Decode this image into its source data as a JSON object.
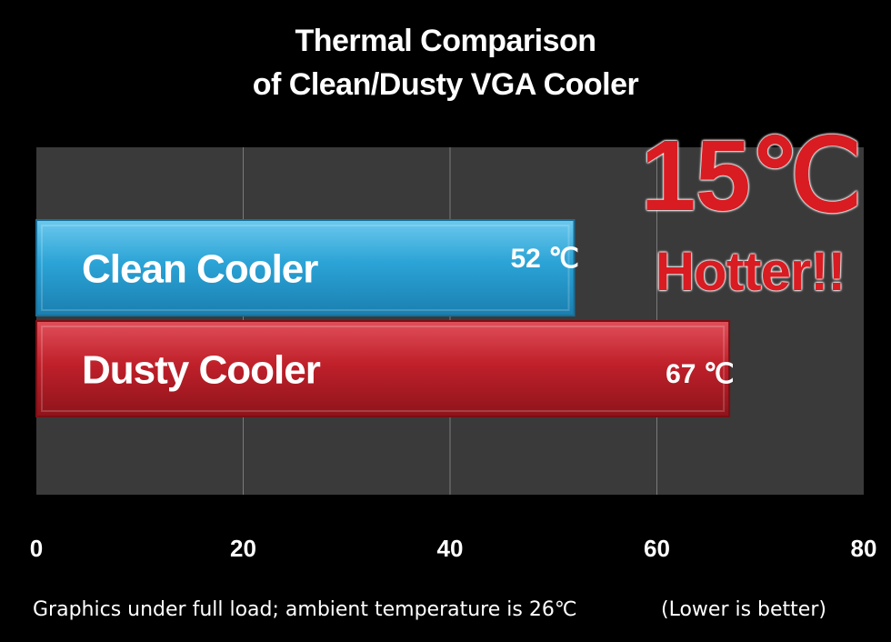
{
  "chart_data": {
    "type": "bar",
    "orientation": "horizontal",
    "title_lines": [
      "Thermal Comparison",
      "of Clean/Dusty VGA Cooler"
    ],
    "categories": [
      "Clean Cooler",
      "Dusty Cooler"
    ],
    "values": [
      52,
      67
    ],
    "value_labels": [
      "52 ℃",
      "67 ℃"
    ],
    "bar_colors": [
      "#2ba3d6",
      "#c0202a"
    ],
    "xlim": [
      0,
      80
    ],
    "x_ticks": [
      0,
      20,
      40,
      60,
      80
    ],
    "grid": true,
    "plot_background": "#3a3a3a",
    "grid_color": "#7a7a7a",
    "callout": {
      "big": "15℃",
      "small": "Hotter!!",
      "color": "#d81c22"
    },
    "footnote_left": "Graphics under full load; ambient temperature is 26℃",
    "footnote_right": "(Lower is better)"
  }
}
